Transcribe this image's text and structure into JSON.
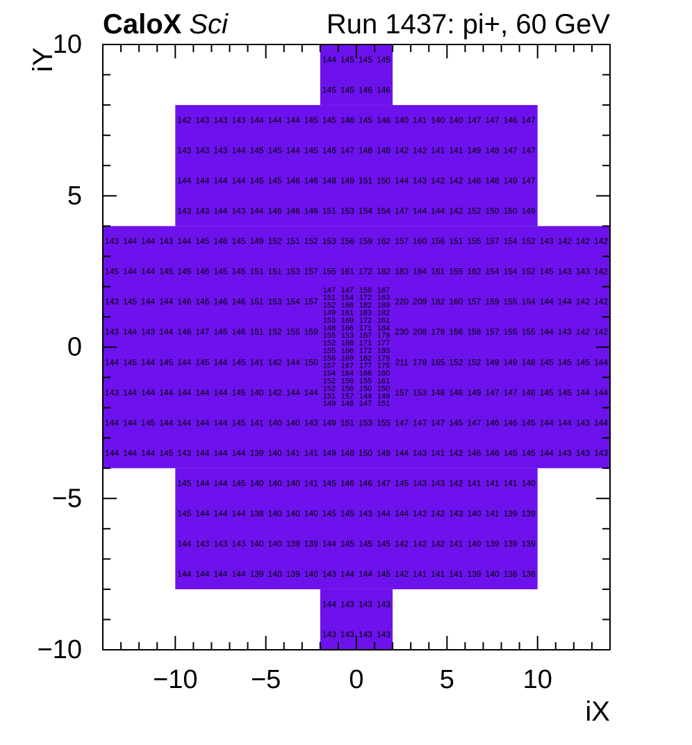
{
  "chart_data": {
    "type": "heatmap",
    "brand_bold": "CaloX",
    "brand_italic": "Sci",
    "run_title": "Run 1437: pi+, 60 GeV",
    "xlabel": "iX",
    "ylabel": "iY",
    "x_range": [
      -14,
      14
    ],
    "y_range": [
      -10,
      10
    ],
    "x_major_ticks": [
      -10,
      -5,
      0,
      5,
      10
    ],
    "y_major_ticks": [
      10,
      5,
      0,
      -5,
      -10
    ],
    "minor_tick_step": 1,
    "grid": false,
    "legend": false,
    "cell_color": "#6d12ec",
    "text_color": "#000000",
    "region_fills": [
      {
        "y": [
          10,
          8
        ],
        "x": [
          -2,
          2
        ]
      },
      {
        "y": [
          8,
          4
        ],
        "x": [
          -10,
          10
        ]
      },
      {
        "y": [
          4,
          -4
        ],
        "x": [
          -14,
          14
        ]
      },
      {
        "y": [
          -4,
          -8
        ],
        "x": [
          -10,
          10
        ]
      },
      {
        "y": [
          -8,
          -10
        ],
        "x": [
          -2,
          2
        ]
      }
    ],
    "rows": [
      {
        "iy": 9,
        "x_start": -2,
        "values": [
          144,
          145,
          145,
          145
        ]
      },
      {
        "iy": 8,
        "x_start": -2,
        "values": [
          145,
          145,
          146,
          146
        ]
      },
      {
        "iy": 7,
        "x_start": -10,
        "values": [
          142,
          143,
          143,
          143,
          144,
          144,
          144,
          145,
          145,
          146,
          145,
          148,
          140,
          141,
          140,
          140,
          147,
          147,
          146,
          147
        ]
      },
      {
        "iy": 6,
        "x_start": -10,
        "values": [
          143,
          143,
          143,
          144,
          145,
          145,
          144,
          145,
          146,
          147,
          148,
          148,
          142,
          142,
          141,
          141,
          149,
          148,
          147,
          147
        ]
      },
      {
        "iy": 5,
        "x_start": -10,
        "values": [
          144,
          144,
          144,
          144,
          145,
          145,
          146,
          146,
          148,
          149,
          151,
          150,
          144,
          143,
          142,
          142,
          148,
          148,
          149,
          147
        ]
      },
      {
        "iy": 4,
        "x_start": -10,
        "values": [
          143,
          143,
          144,
          143,
          144,
          146,
          146,
          146,
          151,
          153,
          154,
          154,
          147,
          144,
          144,
          142,
          152,
          150,
          150,
          149
        ]
      },
      {
        "iy": 3,
        "x_start": -14,
        "values": [
          143,
          144,
          144,
          143,
          144,
          145,
          146,
          145,
          149,
          152,
          151,
          152,
          153,
          156,
          159,
          162,
          157,
          160,
          156,
          151,
          155,
          157,
          154,
          152,
          143,
          142,
          142,
          142
        ]
      },
      {
        "iy": 2,
        "x_start": -14,
        "values": [
          145,
          144,
          144,
          145,
          145,
          146,
          145,
          145,
          151,
          151,
          153,
          157,
          155,
          161,
          172,
          182,
          183,
          184,
          161,
          155,
          162,
          154,
          154,
          152,
          145,
          143,
          143,
          142
        ]
      },
      {
        "iy": 1,
        "x_start": -14,
        "values": [
          143,
          145,
          144,
          144,
          146,
          146,
          146,
          146,
          151,
          153,
          154,
          157
        ]
      },
      {
        "iy": 1,
        "x_start": 2,
        "values": [
          220,
          209,
          182,
          160,
          157,
          159,
          155,
          154,
          144,
          144,
          142,
          142
        ]
      },
      {
        "iy": 0,
        "x_start": -14,
        "values": [
          143,
          144,
          143,
          144,
          146,
          147,
          145,
          146,
          151,
          152,
          155,
          159
        ]
      },
      {
        "iy": 0,
        "x_start": 2,
        "values": [
          230,
          208,
          178,
          156,
          158,
          157,
          155,
          155,
          144,
          143,
          142,
          142
        ]
      },
      {
        "iy": -1,
        "x_start": -14,
        "values": [
          144,
          145,
          144,
          145,
          144,
          145,
          144,
          145,
          141,
          142,
          144,
          150
        ]
      },
      {
        "iy": -1,
        "x_start": 2,
        "values": [
          211,
          178,
          165,
          152,
          152,
          149,
          149,
          148,
          145,
          145,
          145,
          144
        ]
      },
      {
        "iy": -2,
        "x_start": -14,
        "values": [
          143,
          144,
          144,
          144,
          144,
          144,
          144,
          145,
          140,
          142,
          144,
          144
        ]
      },
      {
        "iy": -2,
        "x_start": 2,
        "values": [
          157,
          153,
          148,
          146,
          149,
          147,
          147,
          146,
          145,
          145,
          144,
          144
        ]
      },
      {
        "iy": -3,
        "x_start": -14,
        "values": [
          144,
          144,
          145,
          144,
          144,
          144,
          144,
          145,
          141,
          140,
          140,
          143,
          149,
          151,
          153,
          155,
          147,
          147,
          147,
          145,
          147,
          146,
          146,
          145,
          144,
          144,
          143,
          144
        ]
      },
      {
        "iy": -4,
        "x_start": -14,
        "values": [
          144,
          144,
          144,
          145,
          143,
          144,
          144,
          144,
          139,
          140,
          141,
          141,
          149,
          148,
          150,
          149,
          144,
          143,
          141,
          142,
          146,
          146,
          145,
          145,
          144,
          143,
          143,
          143
        ]
      },
      {
        "iy": -5,
        "x_start": -10,
        "values": [
          145,
          144,
          144,
          145,
          140,
          140,
          140,
          141,
          145,
          146,
          146,
          147,
          145,
          143,
          143,
          142,
          141,
          141,
          141,
          140
        ]
      },
      {
        "iy": -6,
        "x_start": -10,
        "values": [
          145,
          144,
          144,
          144,
          138,
          140,
          140,
          140,
          145,
          145,
          143,
          144,
          144,
          142,
          142,
          143,
          140,
          141,
          139,
          139
        ]
      },
      {
        "iy": -7,
        "x_start": -10,
        "values": [
          144,
          143,
          143,
          143,
          140,
          140,
          139,
          139,
          144,
          145,
          145,
          145,
          142,
          142,
          142,
          141,
          140,
          139,
          139,
          139
        ]
      },
      {
        "iy": -8,
        "x_start": -10,
        "values": [
          144,
          144,
          144,
          144,
          139,
          140,
          139,
          140,
          143,
          144,
          144,
          145,
          142,
          141,
          141,
          141,
          139,
          140,
          138,
          138
        ]
      },
      {
        "iy": -9,
        "x_start": -2,
        "values": [
          144,
          143,
          143,
          143
        ]
      },
      {
        "iy": -10,
        "x_start": -2,
        "values": [
          143,
          143,
          143,
          143
        ]
      }
    ],
    "fine_row_height": 0.25,
    "fine_rows": [
      {
        "y_top": 2.0,
        "x_start": -2,
        "values": [
          147,
          147,
          159,
          167
        ]
      },
      {
        "y_top": 1.75,
        "x_start": -2,
        "values": [
          151,
          154,
          172,
          163
        ]
      },
      {
        "y_top": 1.5,
        "x_start": -2,
        "values": [
          152,
          166,
          182,
          189
        ]
      },
      {
        "y_top": 1.25,
        "x_start": -2,
        "values": [
          149,
          161,
          183,
          182
        ]
      },
      {
        "y_top": 1.0,
        "x_start": -2,
        "values": [
          153,
          169,
          172,
          161
        ]
      },
      {
        "y_top": 0.75,
        "x_start": -2,
        "values": [
          148,
          166,
          171,
          184
        ]
      },
      {
        "y_top": 0.5,
        "x_start": -2,
        "values": [
          155,
          153,
          167,
          179
        ]
      },
      {
        "y_top": 0.25,
        "x_start": -2,
        "values": [
          152,
          168,
          171,
          177
        ]
      },
      {
        "y_top": 0.0,
        "x_start": -2,
        "values": [
          155,
          166,
          172,
          193
        ]
      },
      {
        "y_top": -0.25,
        "x_start": -2,
        "values": [
          156,
          169,
          182,
          179
        ]
      },
      {
        "y_top": -0.5,
        "x_start": -2,
        "values": [
          157,
          167,
          177,
          175
        ]
      },
      {
        "y_top": -0.75,
        "x_start": -2,
        "values": [
          154,
          164,
          166,
          160
        ]
      },
      {
        "y_top": -1.0,
        "x_start": -2,
        "values": [
          152,
          156,
          155,
          161
        ]
      },
      {
        "y_top": -1.25,
        "x_start": -2,
        "values": [
          152,
          156,
          150,
          150
        ]
      },
      {
        "y_top": -1.5,
        "x_start": -2,
        "values": [
          151,
          157,
          144,
          149
        ]
      },
      {
        "y_top": -1.75,
        "x_start": -2,
        "values": [
          149,
          148,
          147,
          151
        ]
      }
    ]
  }
}
